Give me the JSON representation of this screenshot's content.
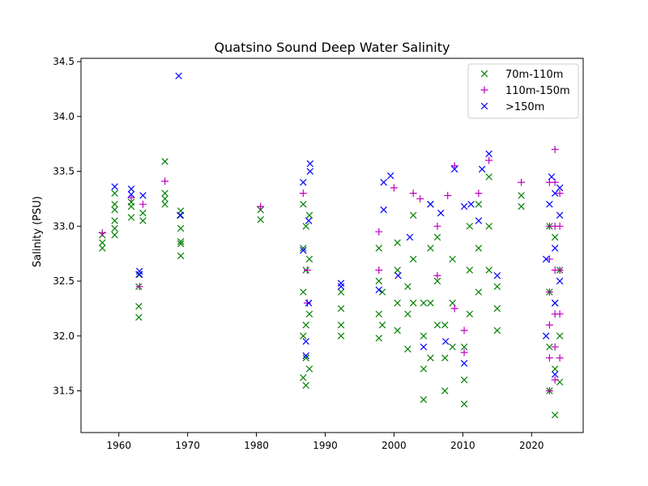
{
  "chart_data": {
    "type": "scatter",
    "title": "Quatsino Sound Deep Water Salinity",
    "xlabel": "",
    "ylabel": "Salinity (PSU)",
    "xlim": [
      1954.5,
      2027.5
    ],
    "ylim": [
      31.12,
      34.53
    ],
    "xticks": [
      1960,
      1970,
      1980,
      1990,
      2000,
      2010,
      2020
    ],
    "yticks": [
      31.5,
      32.0,
      32.5,
      33.0,
      33.5,
      34.0,
      34.5
    ],
    "ytick_labels": [
      "31.5",
      "32.0",
      "32.5",
      "33.0",
      "33.5",
      "34.0",
      "34.5"
    ],
    "grid": false,
    "legend_position": "top-right",
    "series": [
      {
        "name": "70m-110m",
        "color": "#008000",
        "marker": "x",
        "points": [
          {
            "x": 1957.6,
            "y": 32.8
          },
          {
            "x": 1957.6,
            "y": 32.85
          },
          {
            "x": 1957.6,
            "y": 32.92
          },
          {
            "x": 1959.4,
            "y": 32.92
          },
          {
            "x": 1959.4,
            "y": 32.98
          },
          {
            "x": 1959.4,
            "y": 33.05
          },
          {
            "x": 1959.4,
            "y": 33.15
          },
          {
            "x": 1959.4,
            "y": 33.2
          },
          {
            "x": 1959.4,
            "y": 33.3
          },
          {
            "x": 1961.8,
            "y": 33.08
          },
          {
            "x": 1961.8,
            "y": 33.18
          },
          {
            "x": 1961.8,
            "y": 33.22
          },
          {
            "x": 1962.9,
            "y": 32.17
          },
          {
            "x": 1962.9,
            "y": 32.27
          },
          {
            "x": 1962.9,
            "y": 32.45
          },
          {
            "x": 1962.9,
            "y": 32.56
          },
          {
            "x": 1963.5,
            "y": 33.05
          },
          {
            "x": 1963.5,
            "y": 33.12
          },
          {
            "x": 1966.7,
            "y": 33.2
          },
          {
            "x": 1966.7,
            "y": 33.25
          },
          {
            "x": 1966.7,
            "y": 33.3
          },
          {
            "x": 1966.7,
            "y": 33.59
          },
          {
            "x": 1969.0,
            "y": 32.73
          },
          {
            "x": 1969.0,
            "y": 32.84
          },
          {
            "x": 1969.0,
            "y": 32.86
          },
          {
            "x": 1969.0,
            "y": 32.98
          },
          {
            "x": 1969.0,
            "y": 33.1
          },
          {
            "x": 1969.0,
            "y": 33.14
          },
          {
            "x": 1980.6,
            "y": 33.06
          },
          {
            "x": 1980.6,
            "y": 33.15
          },
          {
            "x": 1986.8,
            "y": 31.62
          },
          {
            "x": 1986.8,
            "y": 32.0
          },
          {
            "x": 1986.8,
            "y": 32.4
          },
          {
            "x": 1986.8,
            "y": 32.8
          },
          {
            "x": 1986.8,
            "y": 33.2
          },
          {
            "x": 1987.2,
            "y": 31.55
          },
          {
            "x": 1987.2,
            "y": 31.8
          },
          {
            "x": 1987.2,
            "y": 32.1
          },
          {
            "x": 1987.2,
            "y": 32.6
          },
          {
            "x": 1987.2,
            "y": 33.0
          },
          {
            "x": 1987.7,
            "y": 31.7
          },
          {
            "x": 1987.7,
            "y": 32.2
          },
          {
            "x": 1987.7,
            "y": 32.7
          },
          {
            "x": 1987.7,
            "y": 33.1
          },
          {
            "x": 1992.3,
            "y": 32.0
          },
          {
            "x": 1992.3,
            "y": 32.1
          },
          {
            "x": 1992.3,
            "y": 32.25
          },
          {
            "x": 1992.3,
            "y": 32.4
          },
          {
            "x": 1997.8,
            "y": 31.98
          },
          {
            "x": 1997.8,
            "y": 32.2
          },
          {
            "x": 1997.8,
            "y": 32.5
          },
          {
            "x": 1997.8,
            "y": 32.8
          },
          {
            "x": 1998.3,
            "y": 32.1
          },
          {
            "x": 1998.3,
            "y": 32.4
          },
          {
            "x": 2000.5,
            "y": 32.05
          },
          {
            "x": 2000.5,
            "y": 32.3
          },
          {
            "x": 2000.5,
            "y": 32.6
          },
          {
            "x": 2000.5,
            "y": 32.85
          },
          {
            "x": 2002.0,
            "y": 31.88
          },
          {
            "x": 2002.0,
            "y": 32.2
          },
          {
            "x": 2002.0,
            "y": 32.45
          },
          {
            "x": 2002.8,
            "y": 32.3
          },
          {
            "x": 2002.8,
            "y": 32.7
          },
          {
            "x": 2002.8,
            "y": 33.1
          },
          {
            "x": 2004.3,
            "y": 31.42
          },
          {
            "x": 2004.3,
            "y": 31.7
          },
          {
            "x": 2004.3,
            "y": 32.0
          },
          {
            "x": 2004.3,
            "y": 32.3
          },
          {
            "x": 2005.3,
            "y": 31.8
          },
          {
            "x": 2005.3,
            "y": 32.3
          },
          {
            "x": 2005.3,
            "y": 32.8
          },
          {
            "x": 2005.3,
            "y": 33.2
          },
          {
            "x": 2006.3,
            "y": 32.1
          },
          {
            "x": 2006.3,
            "y": 32.5
          },
          {
            "x": 2006.3,
            "y": 32.9
          },
          {
            "x": 2007.4,
            "y": 31.5
          },
          {
            "x": 2007.4,
            "y": 31.8
          },
          {
            "x": 2007.4,
            "y": 32.1
          },
          {
            "x": 2008.5,
            "y": 31.9
          },
          {
            "x": 2008.5,
            "y": 32.3
          },
          {
            "x": 2008.5,
            "y": 32.7
          },
          {
            "x": 2010.2,
            "y": 31.38
          },
          {
            "x": 2010.2,
            "y": 31.6
          },
          {
            "x": 2010.2,
            "y": 31.9
          },
          {
            "x": 2011.0,
            "y": 32.2
          },
          {
            "x": 2011.0,
            "y": 32.6
          },
          {
            "x": 2011.0,
            "y": 33.0
          },
          {
            "x": 2012.3,
            "y": 32.4
          },
          {
            "x": 2012.3,
            "y": 32.8
          },
          {
            "x": 2012.3,
            "y": 33.2
          },
          {
            "x": 2013.8,
            "y": 32.6
          },
          {
            "x": 2013.8,
            "y": 33.0
          },
          {
            "x": 2013.8,
            "y": 33.45
          },
          {
            "x": 2015.0,
            "y": 32.05
          },
          {
            "x": 2015.0,
            "y": 32.25
          },
          {
            "x": 2015.0,
            "y": 32.45
          },
          {
            "x": 2018.5,
            "y": 33.18
          },
          {
            "x": 2018.5,
            "y": 33.28
          },
          {
            "x": 2022.6,
            "y": 31.5
          },
          {
            "x": 2022.6,
            "y": 31.9
          },
          {
            "x": 2022.6,
            "y": 32.4
          },
          {
            "x": 2022.6,
            "y": 33.0
          },
          {
            "x": 2023.4,
            "y": 31.28
          },
          {
            "x": 2023.4,
            "y": 31.7
          },
          {
            "x": 2023.4,
            "y": 32.3
          },
          {
            "x": 2023.4,
            "y": 32.9
          },
          {
            "x": 2024.1,
            "y": 31.58
          },
          {
            "x": 2024.1,
            "y": 32.0
          },
          {
            "x": 2024.1,
            "y": 32.6
          }
        ]
      },
      {
        "name": "110m-150m",
        "color": "#bf00bf",
        "marker": "+",
        "points": [
          {
            "x": 1957.6,
            "y": 32.94
          },
          {
            "x": 1961.8,
            "y": 33.26
          },
          {
            "x": 1963.0,
            "y": 32.45
          },
          {
            "x": 1963.5,
            "y": 33.2
          },
          {
            "x": 1966.7,
            "y": 33.41
          },
          {
            "x": 1980.6,
            "y": 33.18
          },
          {
            "x": 1986.8,
            "y": 33.3
          },
          {
            "x": 1987.4,
            "y": 32.3
          },
          {
            "x": 1987.4,
            "y": 32.6
          },
          {
            "x": 1997.8,
            "y": 32.6
          },
          {
            "x": 1997.8,
            "y": 32.95
          },
          {
            "x": 2000.0,
            "y": 33.35
          },
          {
            "x": 2002.8,
            "y": 33.3
          },
          {
            "x": 2003.8,
            "y": 33.25
          },
          {
            "x": 2006.3,
            "y": 32.55
          },
          {
            "x": 2006.3,
            "y": 33.0
          },
          {
            "x": 2007.8,
            "y": 33.28
          },
          {
            "x": 2008.8,
            "y": 32.25
          },
          {
            "x": 2008.8,
            "y": 33.55
          },
          {
            "x": 2010.2,
            "y": 31.85
          },
          {
            "x": 2010.2,
            "y": 32.05
          },
          {
            "x": 2012.3,
            "y": 33.3
          },
          {
            "x": 2013.8,
            "y": 33.6
          },
          {
            "x": 2018.5,
            "y": 33.4
          },
          {
            "x": 2022.6,
            "y": 31.5
          },
          {
            "x": 2022.6,
            "y": 31.8
          },
          {
            "x": 2022.6,
            "y": 32.1
          },
          {
            "x": 2022.6,
            "y": 32.4
          },
          {
            "x": 2022.6,
            "y": 32.7
          },
          {
            "x": 2022.6,
            "y": 33.0
          },
          {
            "x": 2022.6,
            "y": 33.4
          },
          {
            "x": 2023.4,
            "y": 31.6
          },
          {
            "x": 2023.4,
            "y": 31.9
          },
          {
            "x": 2023.4,
            "y": 32.2
          },
          {
            "x": 2023.4,
            "y": 32.6
          },
          {
            "x": 2023.4,
            "y": 33.0
          },
          {
            "x": 2023.4,
            "y": 33.4
          },
          {
            "x": 2023.4,
            "y": 33.7
          },
          {
            "x": 2024.1,
            "y": 31.8
          },
          {
            "x": 2024.1,
            "y": 32.2
          },
          {
            "x": 2024.1,
            "y": 32.6
          },
          {
            "x": 2024.1,
            "y": 33.0
          },
          {
            "x": 2024.1,
            "y": 33.3
          }
        ]
      },
      {
        "name": ">150m",
        "color": "#0000ff",
        "marker": "x",
        "points": [
          {
            "x": 1959.4,
            "y": 33.36
          },
          {
            "x": 1961.8,
            "y": 33.29
          },
          {
            "x": 1961.8,
            "y": 33.34
          },
          {
            "x": 1963.0,
            "y": 32.56
          },
          {
            "x": 1963.0,
            "y": 32.59
          },
          {
            "x": 1963.5,
            "y": 33.28
          },
          {
            "x": 1968.7,
            "y": 34.37
          },
          {
            "x": 1968.9,
            "y": 33.1
          },
          {
            "x": 1986.8,
            "y": 32.78
          },
          {
            "x": 1986.8,
            "y": 33.4
          },
          {
            "x": 1987.2,
            "y": 31.82
          },
          {
            "x": 1987.2,
            "y": 31.95
          },
          {
            "x": 1987.6,
            "y": 32.3
          },
          {
            "x": 1987.6,
            "y": 33.05
          },
          {
            "x": 1987.8,
            "y": 33.5
          },
          {
            "x": 1987.8,
            "y": 33.57
          },
          {
            "x": 1992.3,
            "y": 32.45
          },
          {
            "x": 1992.3,
            "y": 32.48
          },
          {
            "x": 1997.8,
            "y": 32.42
          },
          {
            "x": 1998.5,
            "y": 33.4
          },
          {
            "x": 1998.5,
            "y": 33.15
          },
          {
            "x": 1999.5,
            "y": 33.46
          },
          {
            "x": 2000.6,
            "y": 32.55
          },
          {
            "x": 2002.3,
            "y": 32.9
          },
          {
            "x": 2004.3,
            "y": 31.9
          },
          {
            "x": 2005.3,
            "y": 33.2
          },
          {
            "x": 2006.8,
            "y": 33.12
          },
          {
            "x": 2007.5,
            "y": 31.95
          },
          {
            "x": 2008.8,
            "y": 33.52
          },
          {
            "x": 2010.2,
            "y": 31.75
          },
          {
            "x": 2010.2,
            "y": 33.18
          },
          {
            "x": 2011.2,
            "y": 33.2
          },
          {
            "x": 2012.3,
            "y": 33.05
          },
          {
            "x": 2012.8,
            "y": 33.52
          },
          {
            "x": 2013.8,
            "y": 33.66
          },
          {
            "x": 2015.0,
            "y": 32.55
          },
          {
            "x": 2022.1,
            "y": 32.0
          },
          {
            "x": 2022.1,
            "y": 32.7
          },
          {
            "x": 2022.6,
            "y": 33.2
          },
          {
            "x": 2022.9,
            "y": 33.45
          },
          {
            "x": 2023.4,
            "y": 31.65
          },
          {
            "x": 2023.4,
            "y": 32.3
          },
          {
            "x": 2023.4,
            "y": 32.8
          },
          {
            "x": 2023.4,
            "y": 33.3
          },
          {
            "x": 2024.1,
            "y": 32.5
          },
          {
            "x": 2024.1,
            "y": 33.1
          },
          {
            "x": 2024.1,
            "y": 33.35
          }
        ]
      }
    ]
  }
}
